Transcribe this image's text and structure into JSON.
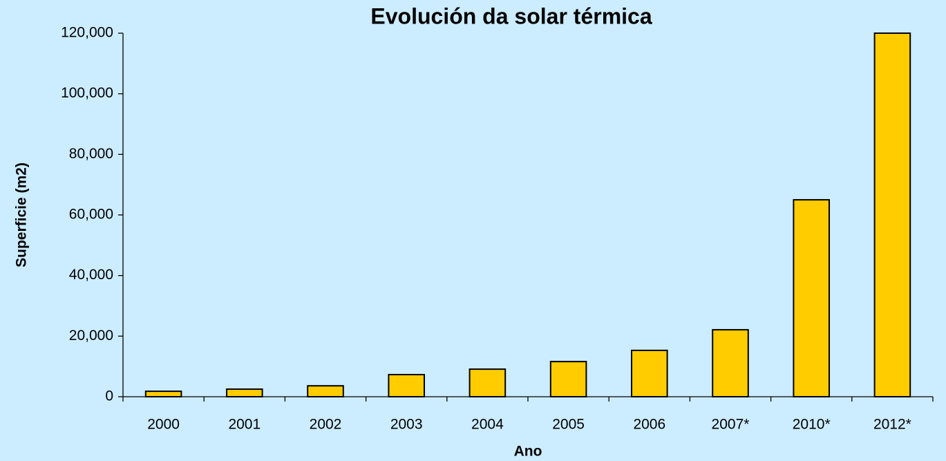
{
  "chart_data": {
    "type": "bar",
    "title": "Evolución da solar térmica",
    "x_label": "Ano",
    "y_label": "Superficie (m2)",
    "categories": [
      "2000",
      "2001",
      "2002",
      "2003",
      "2004",
      "2005",
      "2006",
      "2007*",
      "2010*",
      "2012*"
    ],
    "values": [
      1800,
      2500,
      3600,
      7300,
      9100,
      11600,
      15300,
      22100,
      65000,
      120000
    ],
    "color": "#ffcc00",
    "ylim": [
      0,
      120000
    ],
    "yticks": [
      0,
      {
        "value": 20000,
        "label": "20,000"
      },
      {
        "value": 40000,
        "label": "40,000"
      },
      {
        "value": 60000,
        "label": "60,000"
      },
      {
        "value": 80000,
        "label": "80,000"
      },
      {
        "value": 100000,
        "label": "100,000"
      },
      {
        "value": 120000,
        "label": "120,000"
      }
    ],
    "grid": false
  }
}
